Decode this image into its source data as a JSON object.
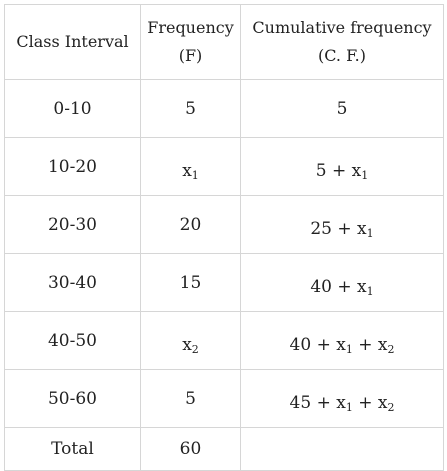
{
  "table": {
    "headers": {
      "class_interval": "Class Interval",
      "frequency": [
        "Frequency",
        "(F)"
      ],
      "cumulative": [
        "Cumulative frequency",
        "(C. F.)"
      ]
    },
    "rows": [
      {
        "interval": "0-10",
        "f": {
          "base": "5",
          "sub": ""
        },
        "cf": [
          {
            "text": "5",
            "sub": ""
          }
        ]
      },
      {
        "interval": "10-20",
        "f": {
          "base": "x",
          "sub": "1"
        },
        "cf": [
          {
            "text": "5 + x",
            "sub": "1"
          }
        ]
      },
      {
        "interval": "20-30",
        "f": {
          "base": "20",
          "sub": ""
        },
        "cf": [
          {
            "text": "25 + x",
            "sub": "1"
          }
        ]
      },
      {
        "interval": "30-40",
        "f": {
          "base": "15",
          "sub": ""
        },
        "cf": [
          {
            "text": "40 + x",
            "sub": "1"
          }
        ]
      },
      {
        "interval": "40-50",
        "f": {
          "base": "x",
          "sub": "2"
        },
        "cf": [
          {
            "text": "40 + x",
            "sub": "1"
          },
          {
            "text": " + x",
            "sub": "2"
          }
        ]
      },
      {
        "interval": "50-60",
        "f": {
          "base": "5",
          "sub": ""
        },
        "cf": [
          {
            "text": "45 + x",
            "sub": "1"
          },
          {
            "text": " + x",
            "sub": "2"
          }
        ]
      }
    ],
    "total": {
      "label": "Total",
      "f": "60",
      "cf": ""
    }
  }
}
